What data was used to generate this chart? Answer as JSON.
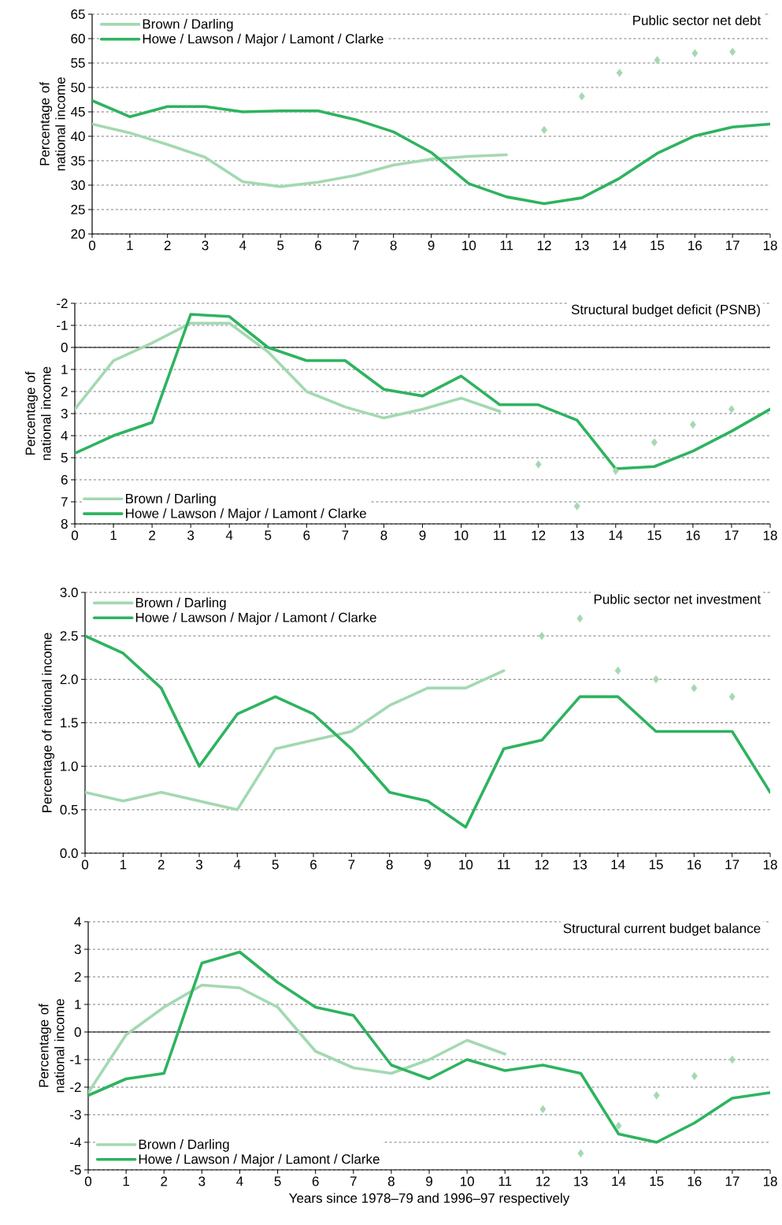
{
  "chart_data": [
    {
      "type": "line",
      "title": "Public sector net debt",
      "ylabel": "Percentage of national income",
      "x": [
        0,
        1,
        2,
        3,
        4,
        5,
        6,
        7,
        8,
        9,
        10,
        11,
        12,
        13,
        14,
        15,
        16,
        17,
        18
      ],
      "xlim": [
        0,
        18
      ],
      "xticks": [
        0,
        1,
        2,
        3,
        4,
        5,
        6,
        7,
        8,
        9,
        10,
        11,
        12,
        13,
        14,
        15,
        16,
        17,
        18
      ],
      "ylim": [
        20,
        65
      ],
      "yticks": [
        20,
        25,
        30,
        35,
        40,
        45,
        50,
        55,
        60,
        65
      ],
      "grid": "y",
      "legend": "top left",
      "series": [
        {
          "name": "Brown / Darling",
          "color": "#a3d9b1",
          "x": [
            0,
            1,
            2,
            3,
            4,
            5,
            6,
            7,
            8,
            9,
            10,
            11
          ],
          "values": [
            42.5,
            40.7,
            38.3,
            35.7,
            30.7,
            29.7,
            30.6,
            32.0,
            34.1,
            35.3,
            35.9,
            36.2
          ]
        },
        {
          "name": "Howe / Lawson / Major / Lamont / Clarke",
          "color": "#2eb35f",
          "values": [
            47.3,
            44.0,
            46.1,
            46.1,
            45.0,
            45.2,
            45.2,
            43.4,
            40.9,
            36.7,
            30.3,
            27.6,
            26.2,
            27.4,
            31.4,
            36.5,
            40.1,
            41.9,
            42.5
          ]
        },
        {
          "type": "scatter",
          "marker": "diamond",
          "color": "#a3d9b1",
          "x": [
            12,
            13,
            14,
            15,
            16,
            17
          ],
          "values": [
            41.3,
            48.2,
            53.0,
            55.6,
            57.0,
            57.3
          ]
        }
      ]
    },
    {
      "type": "line",
      "title": "Structural budget deficit (PSNB)",
      "ylabel": "Percentage of national income",
      "x": [
        0,
        1,
        2,
        3,
        4,
        5,
        6,
        7,
        8,
        9,
        10,
        11,
        12,
        13,
        14,
        15,
        16,
        17,
        18
      ],
      "xlim": [
        0,
        18
      ],
      "xticks": [
        0,
        1,
        2,
        3,
        4,
        5,
        6,
        7,
        8,
        9,
        10,
        11,
        12,
        13,
        14,
        15,
        16,
        17,
        18
      ],
      "ylim": [
        8,
        -2
      ],
      "yticks": [
        -2,
        -1,
        0,
        1,
        2,
        3,
        4,
        5,
        6,
        7,
        8
      ],
      "grid": "y",
      "legend": "bottom left",
      "ref_lines": [
        {
          "axis": "y",
          "value": 0
        }
      ],
      "series": [
        {
          "name": "Brown / Darling",
          "color": "#a3d9b1",
          "x": [
            0,
            1,
            2,
            3,
            4,
            5,
            6,
            7,
            8,
            9,
            10,
            11
          ],
          "values": [
            2.8,
            0.6,
            -0.2,
            -1.1,
            -1.1,
            0.2,
            2.0,
            2.7,
            3.2,
            2.8,
            2.3,
            2.9
          ]
        },
        {
          "name": "Howe / Lawson / Major / Lamont / Clarke",
          "color": "#2eb35f",
          "values": [
            4.8,
            4.0,
            3.4,
            -1.5,
            -1.4,
            0.0,
            0.6,
            0.6,
            1.9,
            2.2,
            1.3,
            2.6,
            2.6,
            3.3,
            5.5,
            5.4,
            4.7,
            3.8,
            2.8
          ]
        },
        {
          "type": "scatter",
          "marker": "diamond",
          "color": "#a3d9b1",
          "x": [
            12,
            13,
            14,
            15,
            16,
            17
          ],
          "values": [
            5.3,
            7.2,
            5.6,
            4.3,
            3.5,
            2.8
          ]
        }
      ]
    },
    {
      "type": "line",
      "title": "Public sector net investment",
      "ylabel": "Percentage of national income",
      "x": [
        0,
        1,
        2,
        3,
        4,
        5,
        6,
        7,
        8,
        9,
        10,
        11,
        12,
        13,
        14,
        15,
        16,
        17,
        18
      ],
      "xlim": [
        0,
        18
      ],
      "xticks": [
        0,
        1,
        2,
        3,
        4,
        5,
        6,
        7,
        8,
        9,
        10,
        11,
        12,
        13,
        14,
        15,
        16,
        17,
        18
      ],
      "ylim": [
        0,
        3
      ],
      "yticks": [
        {
          "value": 0,
          "label": "0.0"
        },
        0.5,
        {
          "value": 1,
          "label": "1.0"
        },
        1.5,
        {
          "value": 2,
          "label": "2.0"
        },
        2.5,
        {
          "value": 3,
          "label": "3.0"
        }
      ],
      "grid": "y",
      "legend": "top left",
      "series": [
        {
          "name": "Brown / Darling",
          "color": "#a3d9b1",
          "x": [
            0,
            1,
            2,
            3,
            4,
            5,
            6,
            7,
            8,
            9,
            10,
            11
          ],
          "values": [
            0.7,
            0.6,
            0.7,
            0.6,
            0.5,
            1.2,
            1.3,
            1.4,
            1.7,
            1.9,
            1.9,
            2.1
          ]
        },
        {
          "name": "Howe / Lawson / Major / Lamont / Clarke",
          "color": "#2eb35f",
          "values": [
            2.5,
            2.3,
            1.9,
            1.0,
            1.6,
            1.8,
            1.6,
            1.2,
            0.7,
            0.6,
            0.3,
            1.2,
            1.3,
            1.8,
            1.8,
            1.4,
            1.4,
            1.4,
            0.7
          ]
        },
        {
          "type": "scatter",
          "marker": "diamond",
          "color": "#a3d9b1",
          "x": [
            12,
            13,
            14,
            15,
            16,
            17
          ],
          "values": [
            2.5,
            2.7,
            2.1,
            2.0,
            1.9,
            1.8
          ]
        }
      ]
    },
    {
      "type": "line",
      "title": "Structural current budget balance",
      "ylabel": "Percentage of national income",
      "xlabel": "Years since 1978–79 and 1996–97 respectively",
      "x": [
        0,
        1,
        2,
        3,
        4,
        5,
        6,
        7,
        8,
        9,
        10,
        11,
        12,
        13,
        14,
        15,
        16,
        17,
        18
      ],
      "xlim": [
        0,
        18
      ],
      "xticks": [
        0,
        1,
        2,
        3,
        4,
        5,
        6,
        7,
        8,
        9,
        10,
        11,
        12,
        13,
        14,
        15,
        16,
        17,
        18
      ],
      "ylim": [
        -5,
        4
      ],
      "yticks": [
        -5,
        -4,
        -3,
        -2,
        -1,
        0,
        1,
        2,
        3,
        4
      ],
      "grid": "y",
      "legend": "bottom left",
      "ref_lines": [
        {
          "axis": "y",
          "value": 0
        }
      ],
      "series": [
        {
          "name": "Brown / Darling",
          "color": "#a3d9b1",
          "x": [
            0,
            1,
            2,
            3,
            4,
            5,
            6,
            7,
            8,
            9,
            10,
            11
          ],
          "values": [
            -2.2,
            -0.1,
            0.9,
            1.7,
            1.6,
            0.9,
            -0.7,
            -1.3,
            -1.5,
            -1.0,
            -0.3,
            -0.8
          ]
        },
        {
          "name": "Howe / Lawson / Major / Lamont / Clarke",
          "color": "#2eb35f",
          "values": [
            -2.3,
            -1.7,
            -1.5,
            2.5,
            2.9,
            1.8,
            0.9,
            0.6,
            -1.2,
            -1.7,
            -1.0,
            -1.4,
            -1.2,
            -1.5,
            -3.7,
            -4.0,
            -3.3,
            -2.4,
            -2.2
          ]
        },
        {
          "type": "scatter",
          "marker": "diamond",
          "color": "#a3d9b1",
          "x": [
            12,
            13,
            14,
            15,
            16,
            17
          ],
          "values": [
            -2.8,
            -4.4,
            -3.4,
            -2.3,
            -1.6,
            -1.0
          ]
        }
      ]
    }
  ]
}
